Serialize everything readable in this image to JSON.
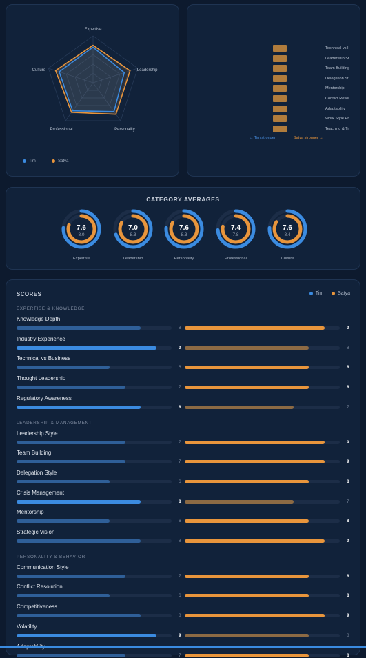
{
  "radar": {
    "axes": [
      "Expertise",
      "Leadership",
      "Personality",
      "Professional",
      "Culture"
    ],
    "series": [
      {
        "name": "Tim",
        "color": "#3b8be0",
        "values": [
          7.6,
          7.0,
          7.6,
          7.4,
          7.6
        ]
      },
      {
        "name": "Satya",
        "color": "#e8953c",
        "values": [
          8.0,
          8.3,
          8.3,
          7.8,
          8.4
        ]
      }
    ],
    "max": 10
  },
  "diff": {
    "labels": [
      "Technical vs Business",
      "Leadership Style",
      "Team Building",
      "Delegation Style",
      "Mentorship",
      "Conflict Resolution",
      "Adaptability",
      "Work Style Preference",
      "Teaching & Training"
    ],
    "display_labels": [
      "Technical vs I",
      "Leadership St",
      "Team Building",
      "Delegation St",
      "Mentorship",
      "Conflict Resol",
      "Adaptability",
      "Work Style Pr",
      "Teaching & Tr"
    ],
    "left_caption": "← Tim stronger",
    "right_caption": "Satya stronger →"
  },
  "averages": {
    "title": "CATEGORY AVERAGES",
    "items": [
      {
        "label": "Expertise",
        "tim": "7.6",
        "satya": "8.0"
      },
      {
        "label": "Leadership",
        "tim": "7.0",
        "satya": "8.3"
      },
      {
        "label": "Personality",
        "tim": "7.6",
        "satya": "8.3"
      },
      {
        "label": "Professional",
        "tim": "7.4",
        "satya": "7.8"
      },
      {
        "label": "Culture",
        "tim": "7.6",
        "satya": "8.4"
      }
    ]
  },
  "scores": {
    "title": "SCORES",
    "legend": {
      "tim": "Tim",
      "satya": "Satya"
    },
    "colors": {
      "tim": "#3b8be0",
      "satya": "#e8953c",
      "dim_tim": "#2f5f98",
      "dim_satya": "#8c6a44"
    },
    "sections": [
      {
        "title": "EXPERTISE & KNOWLEDGE",
        "rows": [
          {
            "label": "Knowledge Depth",
            "tim": 8,
            "satya": 9
          },
          {
            "label": "Industry Experience",
            "tim": 9,
            "satya": 8
          },
          {
            "label": "Technical vs Business",
            "tim": 6,
            "satya": 8
          },
          {
            "label": "Thought Leadership",
            "tim": 7,
            "satya": 8
          },
          {
            "label": "Regulatory Awareness",
            "tim": 8,
            "satya": 7
          }
        ]
      },
      {
        "title": "LEADERSHIP & MANAGEMENT",
        "rows": [
          {
            "label": "Leadership Style",
            "tim": 7,
            "satya": 9
          },
          {
            "label": "Team Building",
            "tim": 7,
            "satya": 9
          },
          {
            "label": "Delegation Style",
            "tim": 6,
            "satya": 8
          },
          {
            "label": "Crisis Management",
            "tim": 8,
            "satya": 7
          },
          {
            "label": "Mentorship",
            "tim": 6,
            "satya": 8
          },
          {
            "label": "Strategic Vision",
            "tim": 8,
            "satya": 9
          }
        ]
      },
      {
        "title": "PERSONALITY & BEHAVIOR",
        "rows": [
          {
            "label": "Communication Style",
            "tim": 7,
            "satya": 8
          },
          {
            "label": "Conflict Resolution",
            "tim": 6,
            "satya": 8
          },
          {
            "label": "Competitiveness",
            "tim": 8,
            "satya": 9
          },
          {
            "label": "Volatility",
            "tim": 9,
            "satya": 8
          },
          {
            "label": "Adaptability",
            "tim": 7,
            "satya": 8
          }
        ]
      }
    ]
  }
}
